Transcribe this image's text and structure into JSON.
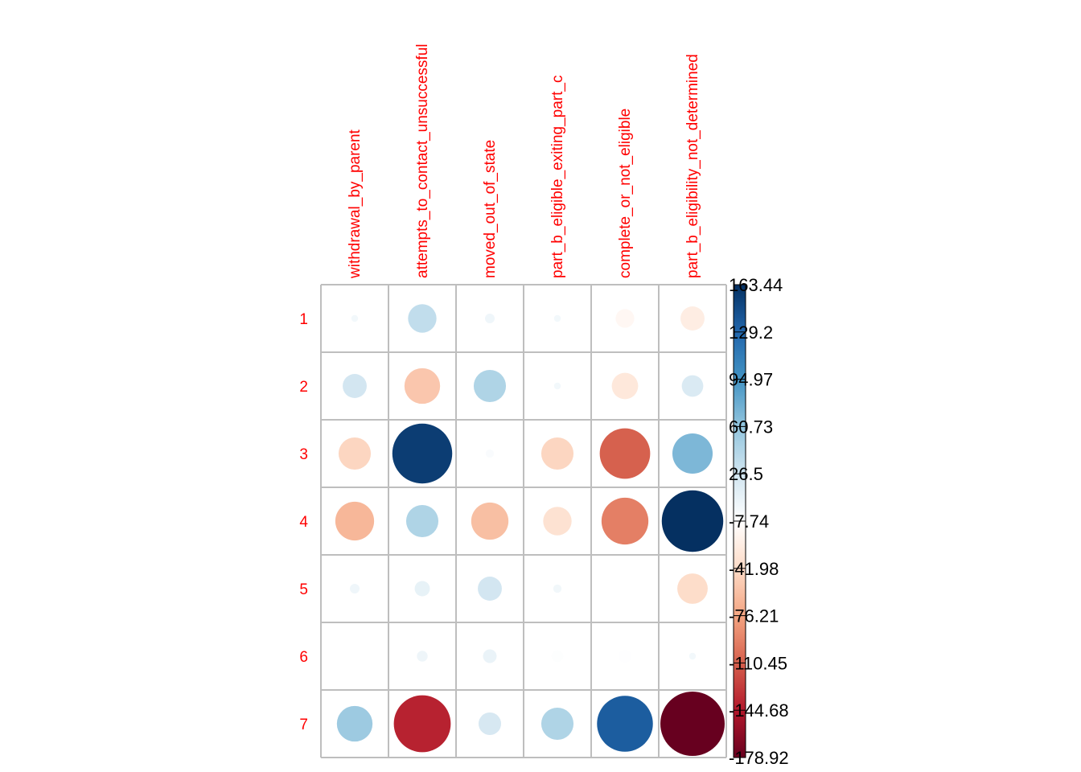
{
  "chart_data": {
    "type": "heatmap",
    "glyph": "circle",
    "columns": [
      "withdrawal_by_parent",
      "attempts_to_contact_unsuccessful",
      "moved_out_of_state",
      "part_b_eligible_exiting_part_c",
      "complete_or_not_eligible",
      "part_b_eligibility_not_determined"
    ],
    "rows": [
      "1",
      "2",
      "3",
      "4",
      "5",
      "6",
      "7"
    ],
    "values": [
      [
        2,
        35,
        4,
        2,
        -15,
        -25
      ],
      [
        25,
        -55,
        45,
        2,
        -30,
        20
      ],
      [
        -45,
        155,
        -3,
        -45,
        -110,
        70
      ],
      [
        -65,
        45,
        -60,
        -35,
        -95,
        163.44
      ],
      [
        4,
        10,
        25,
        3,
        0,
        -40
      ],
      [
        0,
        5,
        8,
        -6,
        -7,
        2
      ],
      [
        55,
        -140,
        22,
        45,
        135,
        -178.92
      ]
    ],
    "colorbar": {
      "min": -178.92,
      "max": 163.44,
      "ticks": [
        "163.44",
        "129.2",
        "94.97",
        "60.73",
        "26.5",
        "-7.74",
        "-41.98",
        "-76.21",
        "-110.45",
        "-144.68",
        "-178.92"
      ],
      "colors": [
        "#67001f",
        "#b2182b",
        "#d6604d",
        "#f4a582",
        "#fddbc7",
        "#ffffff",
        "#d1e5f0",
        "#92c5de",
        "#4393c3",
        "#2166ac",
        "#053061"
      ]
    },
    "label_color": "#ff0000",
    "grid": true
  }
}
